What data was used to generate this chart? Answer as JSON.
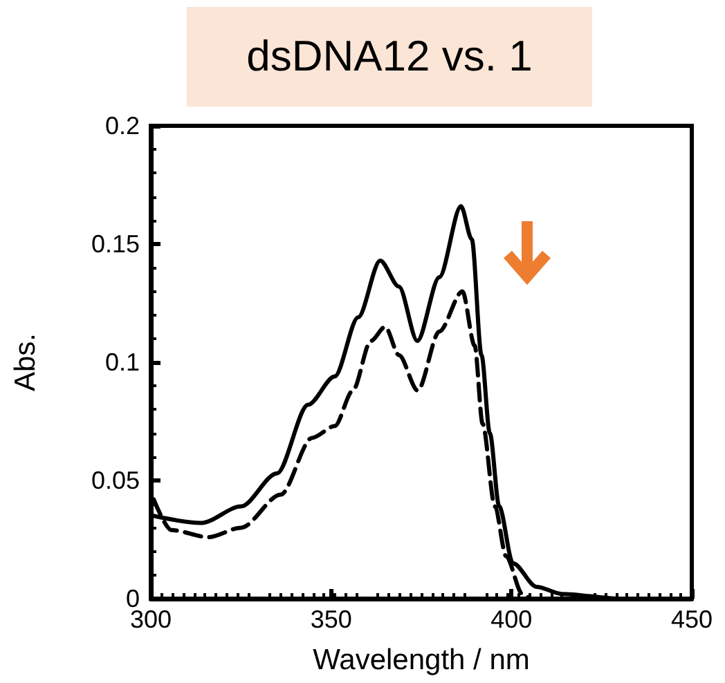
{
  "chart_data": {
    "type": "line",
    "title": "dsDNA12 vs. 1",
    "xlabel": "Wavelength / nm",
    "ylabel": "Abs.",
    "xlim": [
      300,
      450
    ],
    "xticks": [
      300,
      350,
      400,
      450
    ],
    "ylim": [
      0,
      0.2
    ],
    "yticks": [
      0,
      0.05,
      0.1,
      0.15,
      0.2
    ],
    "grid": false,
    "marker": "none",
    "series": [
      {
        "color": "#000000",
        "line_style": "solid",
        "x": [
          300.8,
          314,
          325,
          335,
          343.6,
          351,
          357.5,
          363.6,
          368.8,
          373.9,
          380,
          386,
          389,
          391.7,
          394,
          396.6,
          400.4,
          407,
          414,
          430,
          450
        ],
        "values": [
          0.035,
          0.032,
          0.039,
          0.053,
          0.082,
          0.094,
          0.119,
          0.143,
          0.132,
          0.109,
          0.136,
          0.166,
          0.152,
          0.103,
          0.07,
          0.039,
          0.015,
          0.005,
          0.002,
          0,
          0
        ]
      },
      {
        "color": "#000000",
        "line_style": "dashed",
        "x": [
          300.8,
          305.7,
          316,
          325,
          336,
          344.7,
          351,
          356,
          361,
          365,
          368.8,
          374,
          380,
          386.4,
          389.8,
          392,
          395.4,
          398.5,
          403,
          405
        ],
        "values": [
          0.042,
          0.029,
          0.026,
          0.03,
          0.044,
          0.068,
          0.073,
          0.088,
          0.109,
          0.115,
          0.103,
          0.088,
          0.113,
          0.13,
          0.107,
          0.074,
          0.039,
          0.018,
          0.002,
          0
        ]
      }
    ]
  }
}
